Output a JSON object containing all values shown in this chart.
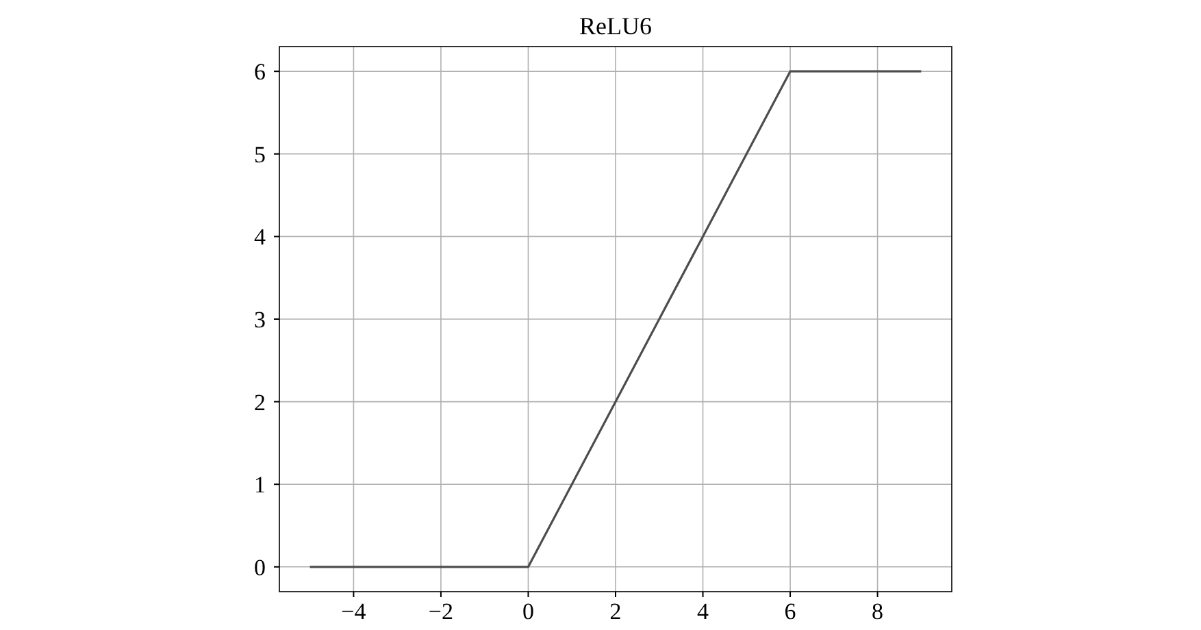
{
  "chart_data": {
    "type": "line",
    "title": "ReLU6",
    "x": [
      -5,
      0,
      6,
      9
    ],
    "series": [
      {
        "color": "#4d4d4d",
        "values": [
          0,
          0,
          6,
          6
        ]
      }
    ],
    "xlim": [
      -5.7,
      9.7
    ],
    "ylim": [
      -0.3,
      6.3
    ],
    "xticks": [
      {
        "value": -4,
        "label": "−4"
      },
      {
        "value": -2,
        "label": "−2"
      },
      0,
      2,
      4,
      6,
      8
    ],
    "yticks": [
      0,
      1,
      2,
      3,
      4,
      5,
      6
    ],
    "grid": true,
    "marker": "none",
    "line_style": "solid"
  }
}
